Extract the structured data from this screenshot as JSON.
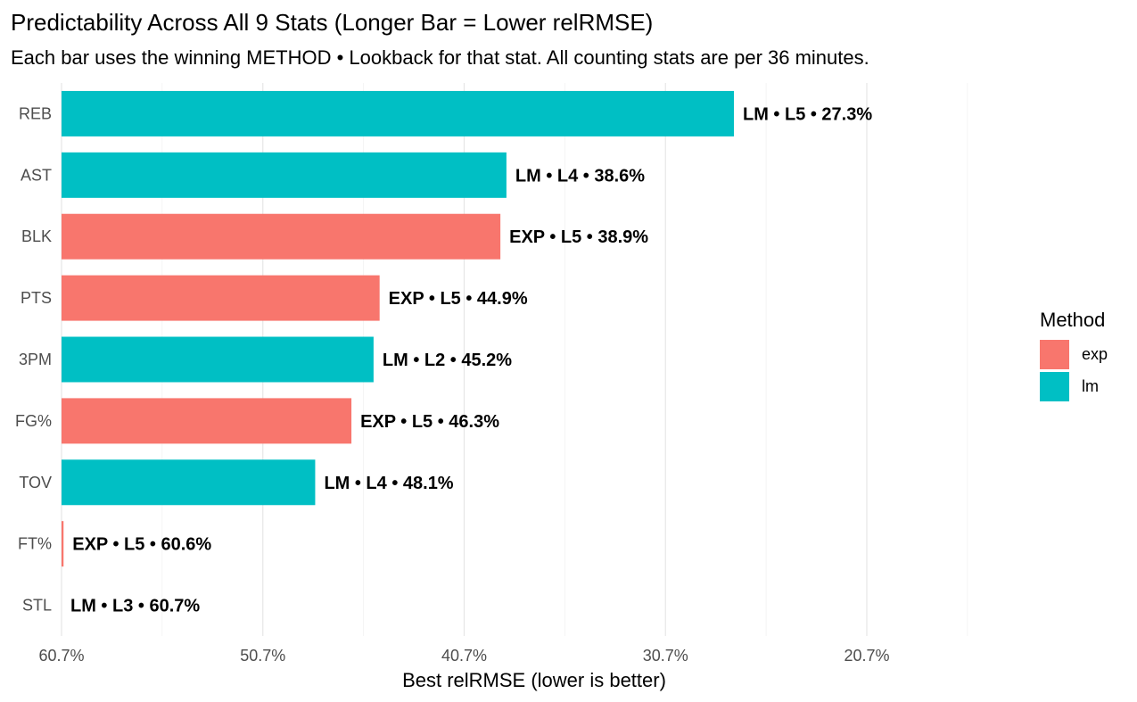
{
  "title": "Predictability Across All 9 Stats (Longer Bar = Lower relRMSE)",
  "subtitle": "Each bar uses the winning METHOD • Lookback for that stat. All counting stats are per 36 minutes.",
  "legend": {
    "title": "Method",
    "items": [
      {
        "key": "exp",
        "label": "exp",
        "color": "#F8766D"
      },
      {
        "key": "lm",
        "label": "lm",
        "color": "#00BFC4"
      }
    ]
  },
  "chart_data": {
    "type": "bar",
    "orientation": "horizontal",
    "xlabel": "Best relRMSE (lower is better)",
    "ylabel": "",
    "xlim": [
      60.7,
      13.7
    ],
    "x_reversed": true,
    "xticks": [
      60.7,
      50.7,
      40.7,
      30.7,
      20.7
    ],
    "xtick_labels": [
      "60.7%",
      "50.7%",
      "40.7%",
      "30.7%",
      "20.7%"
    ],
    "grid": true,
    "legend_position": "right",
    "categories": [
      "REB",
      "AST",
      "BLK",
      "PTS",
      "3PM",
      "FG%",
      "TOV",
      "FT%",
      "STL"
    ],
    "values": [
      27.3,
      38.6,
      38.9,
      44.9,
      45.2,
      46.3,
      48.1,
      60.6,
      60.7
    ],
    "methods": [
      "lm",
      "lm",
      "exp",
      "exp",
      "lm",
      "exp",
      "lm",
      "exp",
      "lm"
    ],
    "data_labels": [
      "LM • L5 • 27.3%",
      "LM • L4 • 38.6%",
      "EXP • L5 • 38.9%",
      "EXP • L5 • 44.9%",
      "LM • L2 • 45.2%",
      "EXP • L5 • 46.3%",
      "LM • L4 • 48.1%",
      "EXP • L5 • 60.6%",
      "LM • L3 • 60.7%"
    ]
  }
}
